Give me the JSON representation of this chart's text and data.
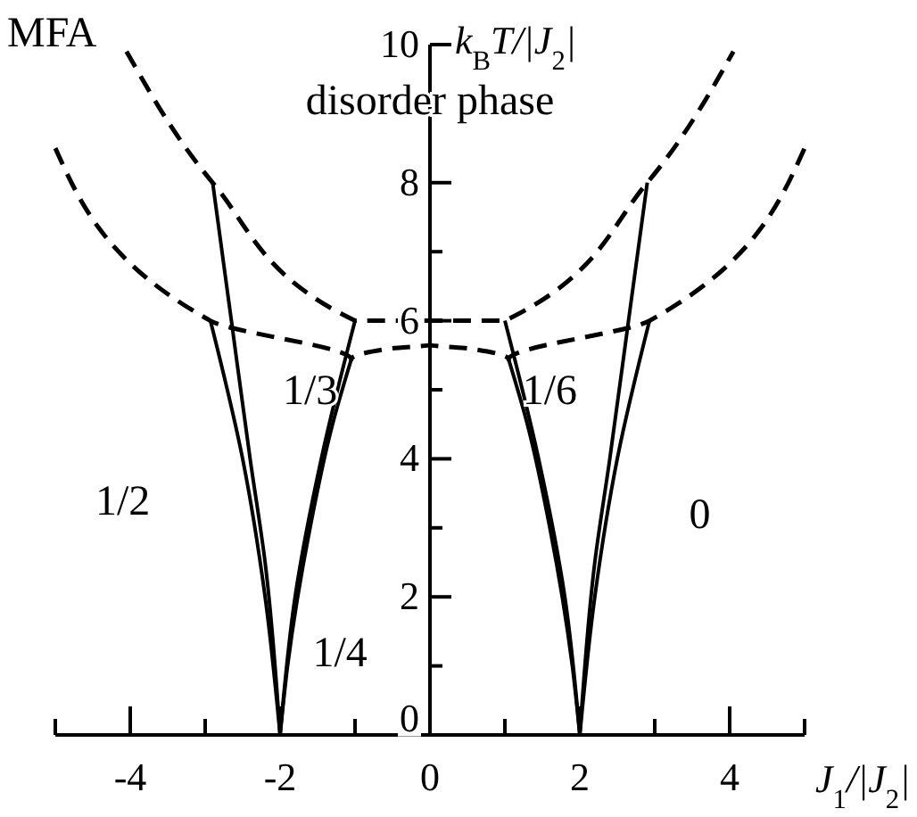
{
  "chart_data": {
    "type": "line",
    "title": "MFA",
    "xlabel": "J$_{1}$/|J$_{2}$|",
    "ylabel": "k$_{B}$T/|J$_{2}$|",
    "xlim": [
      -5,
      5
    ],
    "ylim": [
      0,
      10
    ],
    "xticks": [
      {
        "value": -5,
        "label": null
      },
      -4,
      {
        "value": -3,
        "label": null
      },
      -2,
      {
        "value": -1,
        "label": null
      },
      0,
      {
        "value": 1,
        "label": null
      },
      2,
      {
        "value": 3,
        "label": null
      },
      4,
      {
        "value": 5,
        "label": null
      }
    ],
    "yticks": [
      0,
      {
        "value": 1,
        "label": null
      },
      2,
      {
        "value": 3,
        "label": null
      },
      4,
      {
        "value": 5,
        "label": null
      },
      6,
      {
        "value": 7,
        "label": null
      },
      8,
      {
        "value": 9,
        "label": null
      },
      10
    ],
    "grid": false,
    "marker": "none",
    "series": [
      {
        "color": "#000000",
        "line_style": "dashed",
        "x": [
          -4.05,
          -2.9,
          -1,
          1,
          2.9,
          4.05
        ],
        "values": [
          9.9,
          8,
          6,
          6,
          8,
          9.9
        ]
      },
      {
        "color": "#000000",
        "line_style": "dashed",
        "x": [
          -5,
          -2.93,
          -1.05,
          -0.5,
          0,
          0.5,
          1.05,
          2.93,
          5
        ],
        "values": [
          8.5,
          6,
          5.44,
          5.6,
          5.65,
          5.6,
          5.44,
          6,
          8.5
        ]
      },
      {
        "color": "#000000",
        "line_style": "solid",
        "x": [
          -2.9,
          -2.65,
          -2.4,
          -2.2,
          -2
        ],
        "values": [
          8,
          6,
          4,
          2.5,
          0
        ]
      },
      {
        "color": "#000000",
        "line_style": "solid",
        "x": [
          -2.93,
          -2.5,
          -2.2,
          -2
        ],
        "values": [
          6,
          4,
          2,
          0
        ]
      },
      {
        "color": "#000000",
        "line_style": "solid",
        "x": [
          -1,
          -1.45,
          -1.8,
          -2
        ],
        "values": [
          6,
          4,
          2,
          0
        ]
      },
      {
        "color": "#000000",
        "line_style": "solid",
        "x": [
          -1.05,
          -1.3,
          -1.6,
          -1.9,
          -2
        ],
        "values": [
          5.44,
          4.5,
          3,
          1,
          0
        ]
      },
      {
        "color": "#000000",
        "line_style": "solid",
        "x": [
          2.9,
          2.65,
          2.4,
          2.2,
          2
        ],
        "values": [
          8,
          6,
          4,
          2.5,
          0
        ]
      },
      {
        "color": "#000000",
        "line_style": "solid",
        "x": [
          2.93,
          2.5,
          2.2,
          2
        ],
        "values": [
          6,
          4,
          2,
          0
        ]
      },
      {
        "color": "#000000",
        "line_style": "solid",
        "x": [
          1,
          1.45,
          1.8,
          2
        ],
        "values": [
          6,
          4,
          2,
          0
        ]
      },
      {
        "color": "#000000",
        "line_style": "solid",
        "x": [
          1.05,
          1.3,
          1.6,
          1.9,
          2
        ],
        "values": [
          5.44,
          4.5,
          3,
          1,
          0
        ]
      }
    ],
    "annotations": [
      "disorder phase",
      "1/2",
      "1/3",
      "1/4",
      "1/6",
      "0"
    ]
  }
}
